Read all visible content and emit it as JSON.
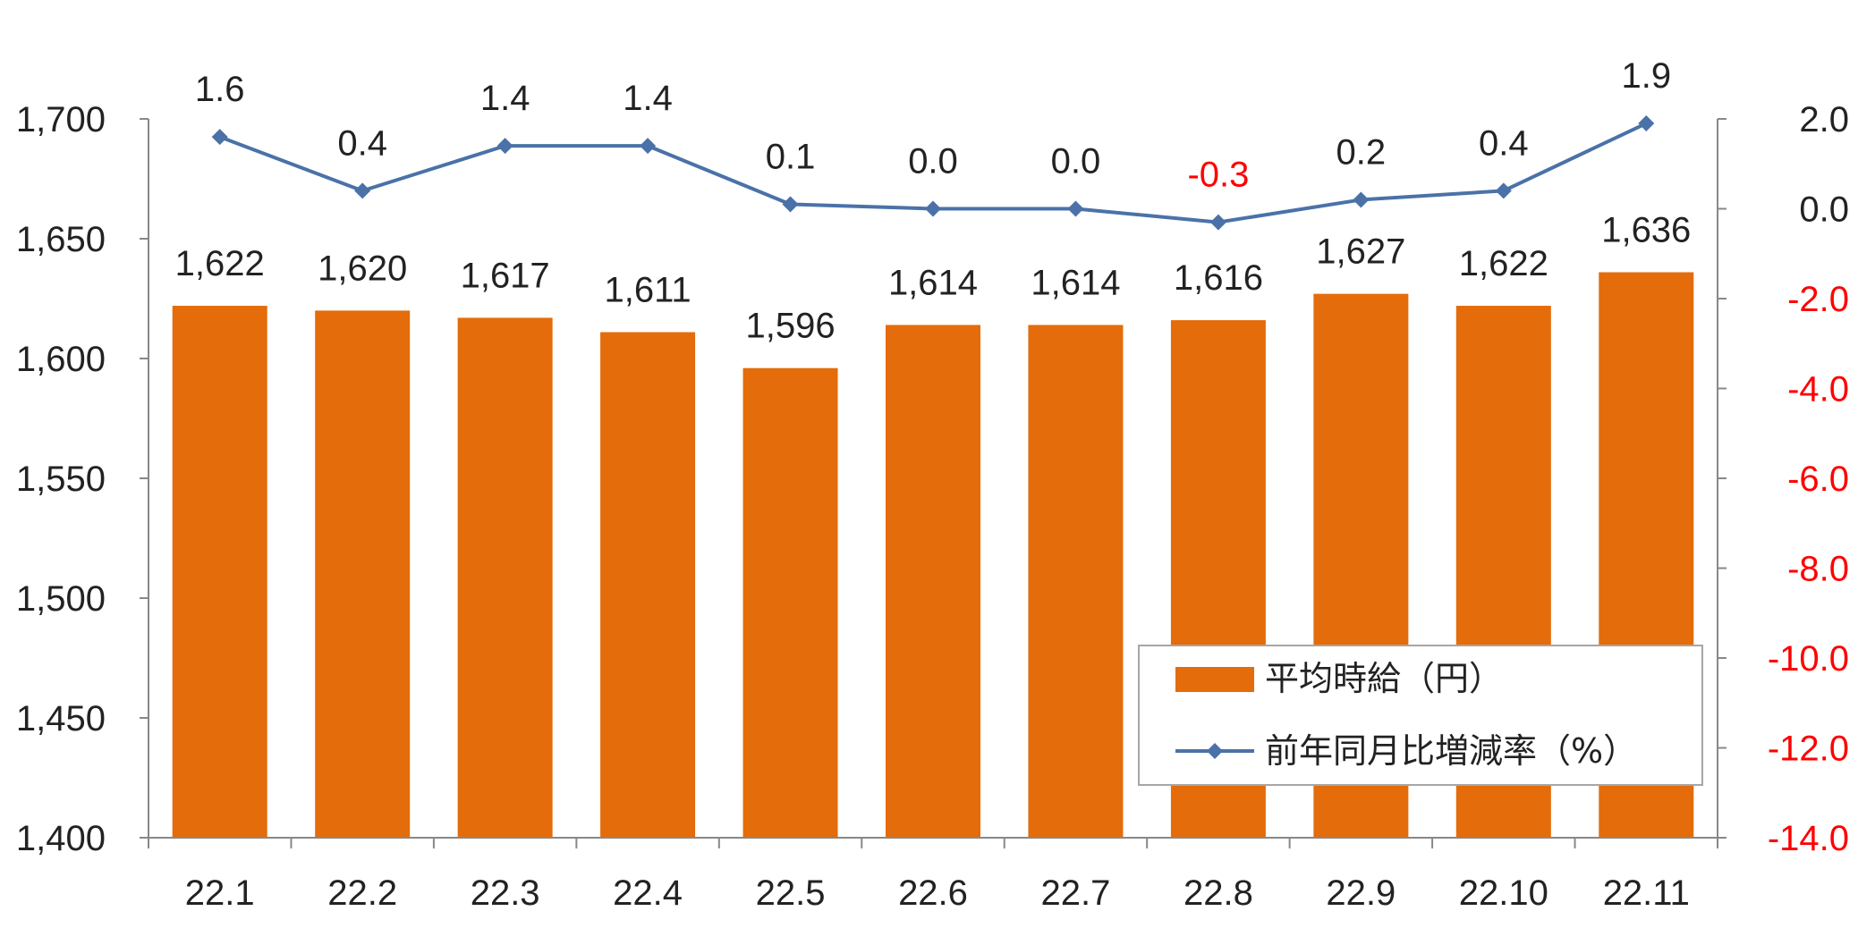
{
  "chart_data": {
    "type": "bar",
    "categories": [
      "22.1",
      "22.2",
      "22.3",
      "22.4",
      "22.5",
      "22.6",
      "22.7",
      "22.8",
      "22.9",
      "22.10",
      "22.11"
    ],
    "series": [
      {
        "name": "平均時給（円）",
        "type": "bar",
        "axis": "left",
        "values": [
          1622,
          1620,
          1617,
          1611,
          1596,
          1614,
          1614,
          1616,
          1627,
          1622,
          1636
        ],
        "labels": [
          "1,622",
          "1,620",
          "1,617",
          "1,611",
          "1,596",
          "1,614",
          "1,614",
          "1,616",
          "1,627",
          "1,622",
          "1,636"
        ],
        "color": "#E46C0A"
      },
      {
        "name": "前年同月比増減率（%）",
        "type": "line",
        "axis": "right",
        "values": [
          1.6,
          0.4,
          1.4,
          1.4,
          0.1,
          0.0,
          0.0,
          -0.3,
          0.2,
          0.4,
          1.9
        ],
        "labels": [
          "1.6",
          "0.4",
          "1.4",
          "1.4",
          "0.1",
          "0.0",
          "0.0",
          "-0.3",
          "0.2",
          "0.4",
          "1.9"
        ],
        "color": "#4A72A8"
      }
    ],
    "y_left": {
      "ylim": [
        1400,
        1700
      ],
      "ticks": [
        1400,
        1450,
        1500,
        1550,
        1600,
        1650,
        1700
      ],
      "tick_labels": [
        "1,400",
        "1,450",
        "1,500",
        "1,550",
        "1,600",
        "1,650",
        "1,700"
      ]
    },
    "y_right": {
      "ylim": [
        -14,
        2
      ],
      "ticks": [
        2,
        0,
        -2,
        -4,
        -6,
        -8,
        -10,
        -12,
        -14
      ],
      "tick_labels": [
        "2.0",
        "0.0",
        "-2.0",
        "-4.0",
        "-6.0",
        "-8.0",
        "-10.0",
        "-12.0",
        "-14.0"
      ]
    },
    "negative_color": "#FF0000",
    "text_color": "#222222",
    "axis_color": "#888888",
    "legend_position": "bottom-right",
    "grid": false
  }
}
